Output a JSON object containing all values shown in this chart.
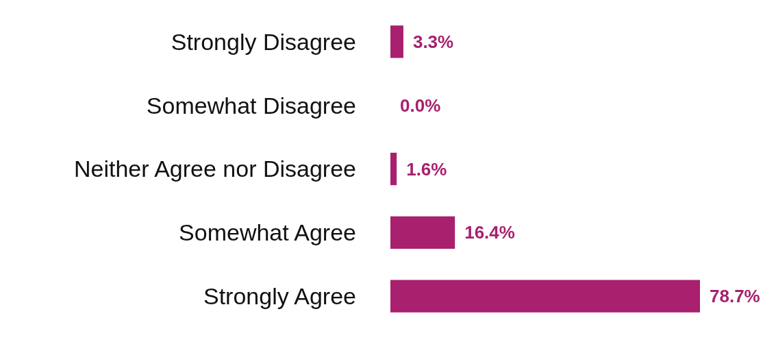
{
  "chart_data": {
    "type": "bar",
    "orientation": "horizontal",
    "categories": [
      "Strongly Disagree",
      "Somewhat Disagree",
      "Neither Agree nor Disagree",
      "Somewhat Agree",
      "Strongly Agree"
    ],
    "values": [
      3.3,
      0.0,
      1.6,
      16.4,
      78.7
    ],
    "value_labels": [
      "3.3%",
      "0.0%",
      "1.6%",
      "16.4%",
      "78.7%"
    ],
    "color": "#a8206e"
  }
}
